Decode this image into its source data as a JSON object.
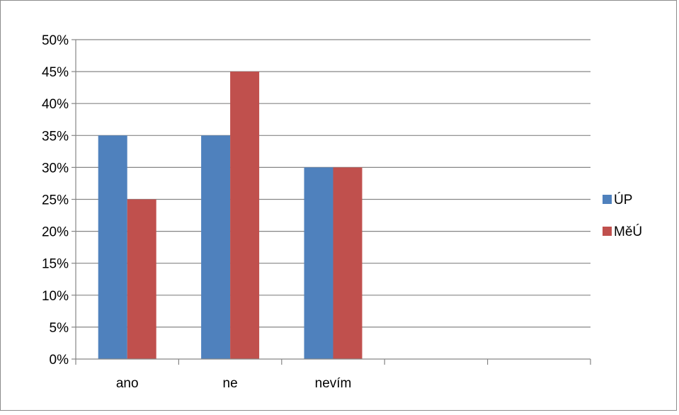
{
  "chart_data": {
    "type": "bar",
    "categories": [
      "ano",
      "ne",
      "nevím",
      "",
      ""
    ],
    "series": [
      {
        "name": "ÚP",
        "values": [
          35,
          35,
          30,
          null,
          null
        ],
        "color": "#4f81bd"
      },
      {
        "name": "MěÚ",
        "values": [
          25,
          45,
          30,
          null,
          null
        ],
        "color": "#c0504d"
      }
    ],
    "ylim": [
      0,
      50
    ],
    "ytick_step": 5,
    "ytick_suffix": "%",
    "yticks": [
      "0%",
      "5%",
      "10%",
      "15%",
      "20%",
      "25%",
      "30%",
      "35%",
      "40%",
      "45%",
      "50%"
    ],
    "grid": true,
    "legend": "right",
    "gridline_color": "#868686"
  }
}
